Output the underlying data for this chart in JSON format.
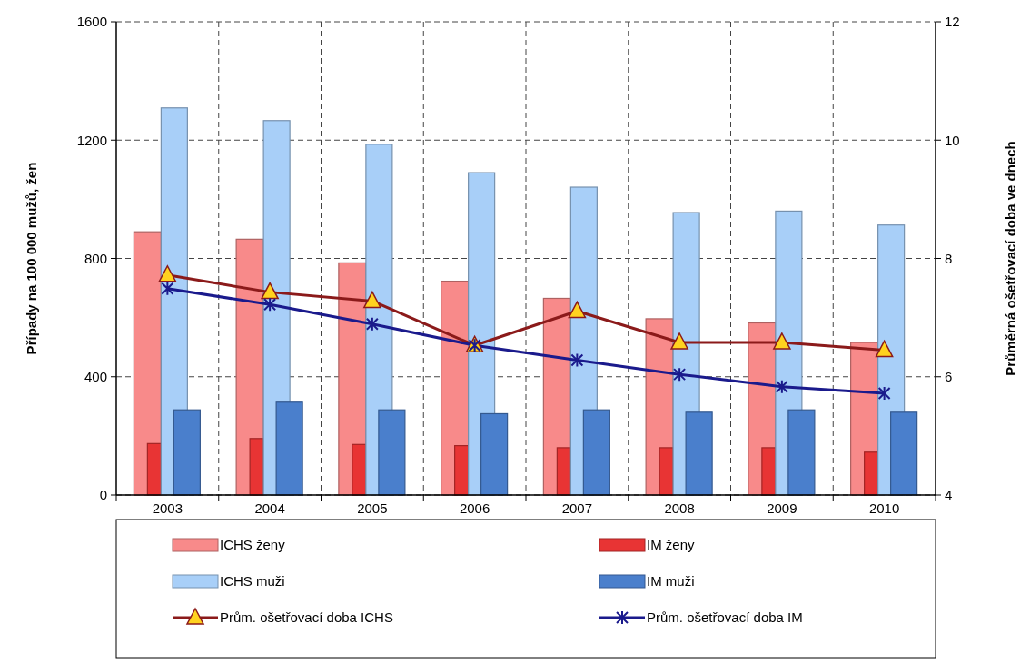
{
  "chart_data": {
    "type": "bar",
    "categories": [
      "2003",
      "2004",
      "2005",
      "2006",
      "2007",
      "2008",
      "2009",
      "2010"
    ],
    "ylabel": "Případy na 100 000 mužů, žen",
    "y2label": "Průměrná ošetřovací doba ve dnech",
    "ylim": [
      0,
      1600
    ],
    "yticks": [
      0,
      400,
      800,
      1200,
      1600
    ],
    "y2lim": [
      4,
      12
    ],
    "y2ticks": [
      4,
      6,
      8,
      10,
      12
    ],
    "grid": true,
    "legend": "bottom",
    "series": [
      {
        "name": "ICHS ženy",
        "color": "#f88a8a",
        "values": [
          890,
          865,
          785,
          723,
          665,
          596,
          582,
          516
        ]
      },
      {
        "name": "IM ženy",
        "color": "#e83434",
        "values": [
          174,
          191,
          171,
          167,
          160,
          160,
          160,
          145
        ]
      },
      {
        "name": "ICHS muži",
        "color": "#a8cff8",
        "values": [
          1309,
          1266,
          1186,
          1090,
          1041,
          955,
          960,
          913
        ]
      },
      {
        "name": "IM muži",
        "color": "#4a7fcc",
        "values": [
          288,
          314,
          288,
          275,
          288,
          280,
          288,
          280
        ]
      },
      {
        "name": "Prům. ošetřovací doba ICHS",
        "type": "line",
        "axis": "y2",
        "color": "#8b1a1a",
        "marker": "triangle",
        "values": [
          7.72,
          7.43,
          7.28,
          6.53,
          7.11,
          6.58,
          6.58,
          6.45
        ]
      },
      {
        "name": "Prům. ošetřovací doba IM",
        "type": "line",
        "axis": "y2",
        "color": "#1a1a8c",
        "marker": "cross",
        "values": [
          7.49,
          7.22,
          6.89,
          6.53,
          6.28,
          6.04,
          5.83,
          5.72
        ]
      }
    ]
  }
}
